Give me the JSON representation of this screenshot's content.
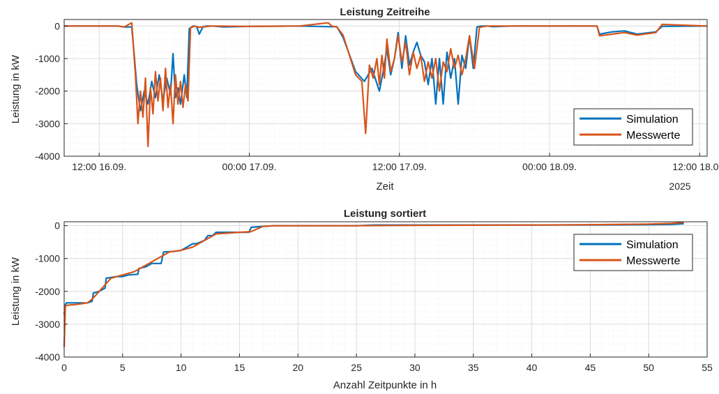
{
  "colors": {
    "simulation": "#0072BD",
    "messwerte": "#D95319",
    "grid_major": "#dcdcdc",
    "grid_minor": "#eeeeee",
    "axis": "#262626"
  },
  "chart_data": [
    {
      "type": "line",
      "title": "Leistung Zeitreihe",
      "xlabel": "Zeit",
      "ylabel": "Leistung in kW",
      "year_label": "2025",
      "x_unit": "hours from 00:00 16.09.2025",
      "xlim": [
        9.2,
        60.6
      ],
      "ylim": [
        -4000,
        200
      ],
      "yticks": [
        0,
        -1000,
        -2000,
        -3000,
        -4000
      ],
      "ytick_labels": [
        "0",
        "-1000",
        "-2000",
        "-3000",
        "-4000"
      ],
      "xticks": [
        12,
        24,
        36,
        48,
        60
      ],
      "xtick_labels": [
        "12:00 16.09.",
        "00:00 17.09.",
        "12:00 17.09.",
        "00:00 18.09.",
        "12:00 18.09."
      ],
      "grid": true,
      "minor_grid": true,
      "legend_position": "bottom-right",
      "series": [
        {
          "name": "Simulation",
          "x": [
            9.2,
            13.5,
            14.0,
            14.6,
            14.8,
            15.0,
            15.3,
            15.6,
            15.9,
            16.2,
            16.5,
            16.8,
            17.1,
            17.4,
            17.7,
            17.9,
            18.1,
            18.3,
            18.5,
            18.8,
            19.0,
            19.2,
            19.5,
            19.8,
            20.0,
            20.3,
            20.6,
            21.0,
            22.0,
            24.0,
            28.0,
            30.5,
            31.0,
            31.5,
            32.5,
            33.2,
            33.8,
            34.4,
            34.7,
            35.0,
            35.3,
            35.6,
            35.9,
            36.2,
            36.5,
            36.8,
            37.1,
            37.4,
            37.7,
            38.0,
            38.3,
            38.6,
            38.9,
            39.2,
            39.5,
            39.8,
            40.1,
            40.4,
            40.7,
            41.0,
            41.3,
            41.6,
            41.9,
            42.2,
            42.5,
            43.0,
            43.5,
            45.0,
            50.0,
            51.8,
            52.0,
            53.0,
            54.0,
            55.0,
            56.5,
            57.0,
            60.6
          ],
          "y": [
            0,
            0,
            -30,
            -30,
            -900,
            -1800,
            -2600,
            -2000,
            -2400,
            -1700,
            -2200,
            -1500,
            -2300,
            -1600,
            -2100,
            -850,
            -2200,
            -1900,
            -2400,
            -1500,
            -2200,
            -80,
            0,
            -20,
            -250,
            -20,
            0,
            0,
            -30,
            -10,
            0,
            -20,
            -20,
            -350,
            -1400,
            -1700,
            -1300,
            -2000,
            -1400,
            -700,
            -1500,
            -1000,
            -200,
            -1300,
            -300,
            -1200,
            -800,
            -500,
            -900,
            -1100,
            -1800,
            -1000,
            -2400,
            -1000,
            -2400,
            -800,
            -1600,
            -1000,
            -2400,
            -900,
            -1300,
            -300,
            -1300,
            -30,
            0,
            0,
            -20,
            0,
            0,
            0,
            -250,
            -180,
            -150,
            -250,
            -180,
            -10,
            0
          ]
        },
        {
          "name": "Messwerte",
          "x": [
            9.2,
            13.5,
            14.0,
            14.6,
            14.9,
            15.1,
            15.3,
            15.5,
            15.7,
            15.9,
            16.1,
            16.3,
            16.5,
            16.7,
            16.9,
            17.1,
            17.3,
            17.5,
            17.7,
            17.9,
            18.1,
            18.3,
            18.5,
            18.7,
            18.9,
            19.1,
            19.3,
            19.6,
            20.0,
            21.0,
            24.0,
            28.0,
            30.3,
            30.6,
            31.0,
            31.5,
            32.5,
            33.0,
            33.3,
            33.6,
            33.9,
            34.2,
            34.4,
            34.6,
            34.8,
            35.0,
            35.3,
            35.6,
            35.9,
            36.2,
            36.5,
            36.8,
            37.1,
            37.4,
            37.7,
            38.0,
            38.3,
            38.6,
            38.9,
            39.2,
            39.5,
            39.8,
            40.1,
            40.4,
            40.7,
            41.0,
            41.3,
            41.6,
            42.0,
            42.4,
            43.0,
            45.0,
            50.0,
            51.8,
            52.0,
            53.0,
            54.0,
            55.0,
            56.5,
            57.0,
            60.6
          ],
          "y": [
            0,
            0,
            -30,
            100,
            -1500,
            -3000,
            -2000,
            -2800,
            -1600,
            -3700,
            -1900,
            -2700,
            -1400,
            -2300,
            -1600,
            -2600,
            -1300,
            -2500,
            -1800,
            -3000,
            -1500,
            -2400,
            -1700,
            -2500,
            -1800,
            -2300,
            -60,
            0,
            -40,
            0,
            -10,
            0,
            100,
            0,
            -30,
            -280,
            -1500,
            -1700,
            -3300,
            -1200,
            -1600,
            -1000,
            -1800,
            -900,
            -1600,
            -400,
            -1400,
            -1000,
            -300,
            -1100,
            -500,
            -1500,
            -800,
            -1300,
            -900,
            -1700,
            -1100,
            -1600,
            -1000,
            -2000,
            -1100,
            -1400,
            -700,
            -1300,
            -900,
            -1500,
            -1000,
            -300,
            -1300,
            -40,
            0,
            0,
            0,
            0,
            -300,
            -250,
            -200,
            -280,
            -200,
            50,
            0
          ]
        }
      ]
    },
    {
      "type": "line",
      "title": "Leistung sortiert",
      "xlabel": "Anzahl Zeitpunkte in h",
      "ylabel": "Leistung in kW",
      "xlim": [
        0,
        55
      ],
      "ylim": [
        -4000,
        120
      ],
      "xticks": [
        0,
        5,
        10,
        15,
        20,
        25,
        30,
        35,
        40,
        45,
        50,
        55
      ],
      "xtick_labels": [
        "0",
        "5",
        "10",
        "15",
        "20",
        "25",
        "30",
        "35",
        "40",
        "45",
        "50",
        "55"
      ],
      "yticks": [
        0,
        -1000,
        -2000,
        -3000,
        -4000
      ],
      "ytick_labels": [
        "0",
        "-1000",
        "-2000",
        "-3000",
        "-4000"
      ],
      "grid": true,
      "minor_grid": true,
      "legend_position": "top-right",
      "series": [
        {
          "name": "Simulation",
          "x": [
            0,
            0.1,
            0.2,
            1.0,
            2.0,
            2.4,
            2.5,
            3.0,
            3.5,
            3.6,
            4.5,
            5.0,
            5.5,
            6.3,
            6.4,
            7.0,
            7.5,
            8.3,
            8.5,
            9.5,
            10.0,
            10.5,
            11.0,
            11.3,
            12.0,
            12.3,
            12.7,
            13.0,
            15.8,
            16.0,
            17.0,
            18.0,
            25.0,
            26.5,
            27.0,
            35.0,
            40.0,
            45.0,
            50.0,
            52.0,
            53.0
          ],
          "y": [
            -2700,
            -2400,
            -2350,
            -2350,
            -2350,
            -2300,
            -2050,
            -2000,
            -1900,
            -1600,
            -1550,
            -1550,
            -1500,
            -1480,
            -1300,
            -1250,
            -1150,
            -1150,
            -800,
            -780,
            -750,
            -650,
            -550,
            -550,
            -450,
            -300,
            -300,
            -200,
            -200,
            -50,
            -20,
            0,
            0,
            20,
            20,
            20,
            20,
            25,
            30,
            40,
            60
          ]
        },
        {
          "name": "Messwerte",
          "x": [
            0,
            0.1,
            0.3,
            1.0,
            2.0,
            2.5,
            3.0,
            3.5,
            4.0,
            5.0,
            6.0,
            7.0,
            8.0,
            9.0,
            10.0,
            11.0,
            12.0,
            13.0,
            15.0,
            16.0,
            16.5,
            17.0,
            18.0,
            25.0,
            30.0,
            40.0,
            45.0,
            50.0,
            52.0,
            53.0
          ],
          "y": [
            -3700,
            -2450,
            -2420,
            -2400,
            -2350,
            -2200,
            -2000,
            -1800,
            -1600,
            -1500,
            -1400,
            -1200,
            -1000,
            -800,
            -750,
            -650,
            -450,
            -250,
            -200,
            -180,
            -100,
            -20,
            0,
            0,
            10,
            20,
            30,
            50,
            70,
            100
          ]
        }
      ]
    }
  ]
}
